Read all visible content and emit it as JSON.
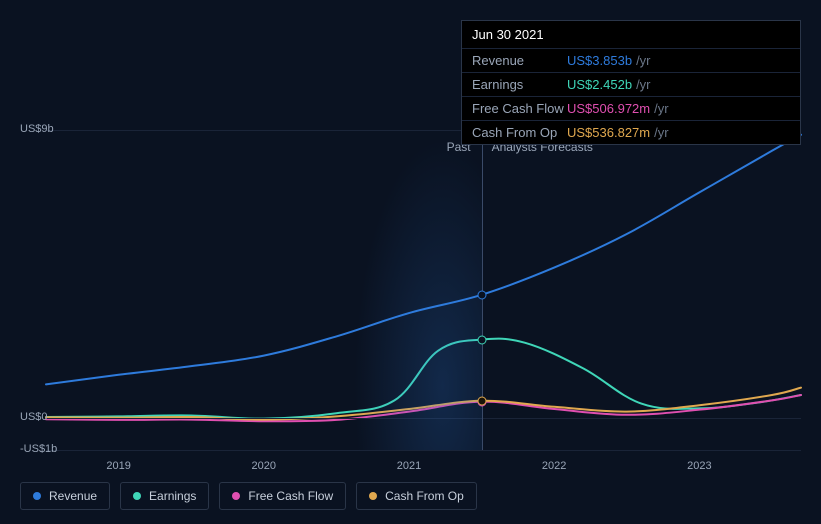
{
  "chart": {
    "background_color": "#0a1221",
    "grid_color": "#1a2438",
    "divider_color": "#3a4a68",
    "tooltip": {
      "date": "Jun 30 2021",
      "rows": [
        {
          "label": "Revenue",
          "value": "US$3.853b",
          "unit": "/yr",
          "color": "#2e7bdc"
        },
        {
          "label": "Earnings",
          "value": "US$2.452b",
          "unit": "/yr",
          "color": "#3fd6b8"
        },
        {
          "label": "Free Cash Flow",
          "value": "US$506.972m",
          "unit": "/yr",
          "color": "#e04fb0"
        },
        {
          "label": "Cash From Op",
          "value": "US$536.827m",
          "unit": "/yr",
          "color": "#e0a84f"
        }
      ]
    },
    "y_axis": {
      "min": -1,
      "max": 9,
      "labels": [
        {
          "value": 9,
          "text": "US$9b"
        },
        {
          "value": 0,
          "text": "US$0"
        },
        {
          "value": -1,
          "text": "-US$1b"
        }
      ]
    },
    "x_axis": {
      "min": 2018.5,
      "max": 2023.7,
      "ticks": [
        2019,
        2020,
        2021,
        2022,
        2023
      ]
    },
    "now_x": 2021.5,
    "past_label": "Past",
    "forecast_label": "Analysts Forecasts",
    "past_shade_start": 2020.6,
    "series": [
      {
        "name": "Revenue",
        "color": "#2e7bdc",
        "width": 2,
        "points": [
          [
            2018.5,
            1.05
          ],
          [
            2019.0,
            1.35
          ],
          [
            2019.5,
            1.62
          ],
          [
            2020.0,
            1.95
          ],
          [
            2020.5,
            2.55
          ],
          [
            2021.0,
            3.28
          ],
          [
            2021.5,
            3.85
          ],
          [
            2022.0,
            4.7
          ],
          [
            2022.5,
            5.75
          ],
          [
            2023.0,
            7.05
          ],
          [
            2023.5,
            8.35
          ],
          [
            2023.7,
            8.85
          ]
        ],
        "marker_at": 2021.5
      },
      {
        "name": "Earnings",
        "color": "#3fd6b8",
        "width": 2,
        "points": [
          [
            2018.5,
            0.03
          ],
          [
            2019.0,
            0.05
          ],
          [
            2019.5,
            0.08
          ],
          [
            2020.0,
            -0.02
          ],
          [
            2020.5,
            0.15
          ],
          [
            2020.9,
            0.55
          ],
          [
            2021.2,
            2.1
          ],
          [
            2021.5,
            2.45
          ],
          [
            2021.8,
            2.35
          ],
          [
            2022.2,
            1.55
          ],
          [
            2022.6,
            0.45
          ],
          [
            2023.0,
            0.3
          ],
          [
            2023.4,
            0.48
          ],
          [
            2023.7,
            0.72
          ]
        ],
        "marker_at": 2021.5
      },
      {
        "name": "Free Cash Flow",
        "color": "#e04fb0",
        "width": 2,
        "points": [
          [
            2018.5,
            -0.04
          ],
          [
            2019.0,
            -0.06
          ],
          [
            2019.5,
            -0.05
          ],
          [
            2020.0,
            -0.1
          ],
          [
            2020.5,
            -0.06
          ],
          [
            2021.0,
            0.2
          ],
          [
            2021.5,
            0.51
          ],
          [
            2022.0,
            0.28
          ],
          [
            2022.5,
            0.1
          ],
          [
            2023.0,
            0.26
          ],
          [
            2023.5,
            0.55
          ],
          [
            2023.7,
            0.72
          ]
        ],
        "marker_at": 2021.5
      },
      {
        "name": "Cash From Op",
        "color": "#e0a84f",
        "width": 2,
        "points": [
          [
            2018.5,
            0.02
          ],
          [
            2019.0,
            0.01
          ],
          [
            2019.5,
            0.03
          ],
          [
            2020.0,
            -0.05
          ],
          [
            2020.5,
            0.05
          ],
          [
            2021.0,
            0.28
          ],
          [
            2021.5,
            0.54
          ],
          [
            2022.0,
            0.35
          ],
          [
            2022.5,
            0.2
          ],
          [
            2023.0,
            0.4
          ],
          [
            2023.5,
            0.72
          ],
          [
            2023.7,
            0.95
          ]
        ],
        "marker_at": null
      }
    ],
    "shared_marker_at": 2021.5,
    "shared_marker_color": "#e0a84f",
    "legend": [
      {
        "label": "Revenue",
        "color": "#2e7bdc"
      },
      {
        "label": "Earnings",
        "color": "#3fd6b8"
      },
      {
        "label": "Free Cash Flow",
        "color": "#e04fb0"
      },
      {
        "label": "Cash From Op",
        "color": "#e0a84f"
      }
    ]
  }
}
